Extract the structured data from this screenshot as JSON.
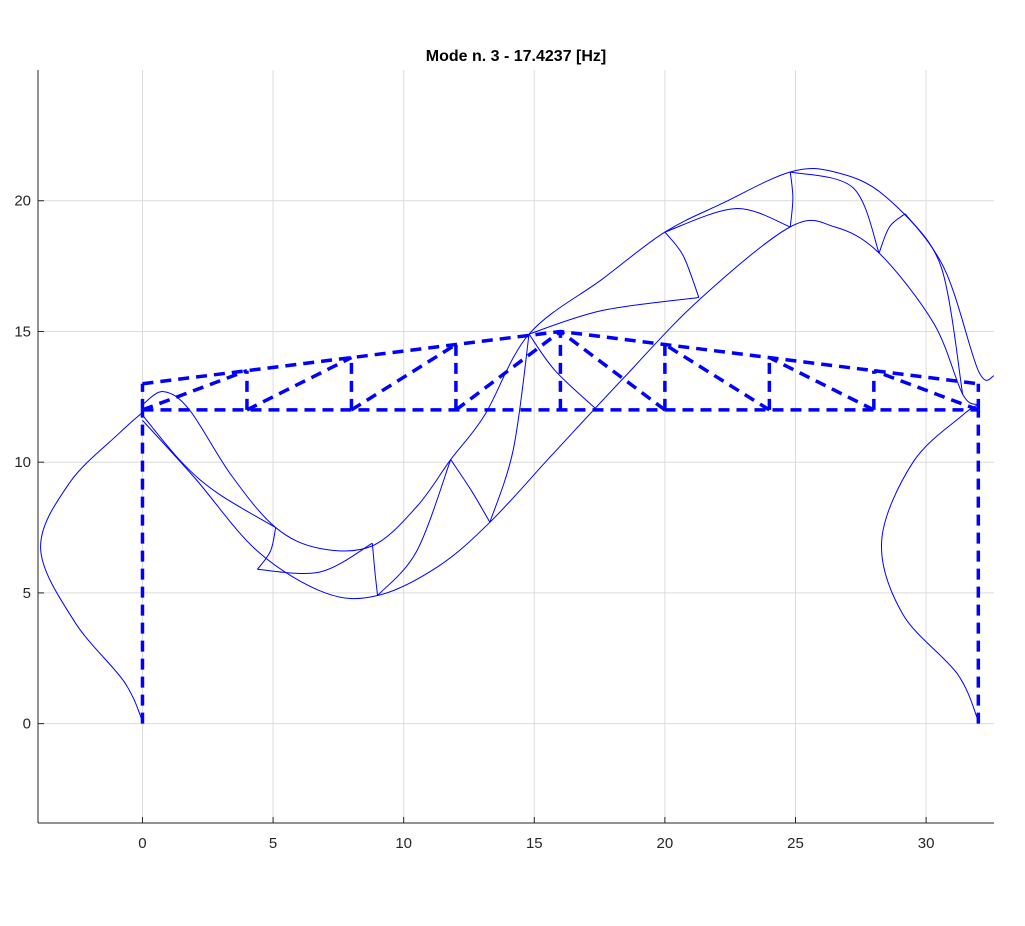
{
  "chart_data": {
    "type": "line",
    "title": "Mode n. 3 - 17.4237 [Hz]",
    "xlabel": "",
    "ylabel": "",
    "xlim": [
      -4,
      32.6
    ],
    "ylim": [
      -3.8,
      25
    ],
    "xticks": [
      0,
      5,
      10,
      15,
      20,
      25,
      30
    ],
    "yticks": [
      0,
      5,
      10,
      15,
      20
    ],
    "grid": true,
    "line_color": "#0000ff",
    "series": [
      {
        "style": "dashed-thick",
        "segments": [
          [
            [
              0,
              0
            ],
            [
              0,
              12
            ]
          ],
          [
            [
              32,
              0
            ],
            [
              32,
              12
            ]
          ],
          [
            [
              0,
              12
            ],
            [
              32,
              12
            ]
          ],
          [
            [
              0,
              13
            ],
            [
              4,
              13.5
            ],
            [
              8,
              14
            ],
            [
              12,
              14.5
            ],
            [
              16,
              15
            ],
            [
              20,
              14.5
            ],
            [
              24,
              14
            ],
            [
              28,
              13.5
            ],
            [
              32,
              13
            ]
          ],
          [
            [
              0,
              12
            ],
            [
              0,
              13
            ]
          ],
          [
            [
              4,
              12
            ],
            [
              4,
              13.5
            ]
          ],
          [
            [
              8,
              12
            ],
            [
              8,
              14
            ]
          ],
          [
            [
              12,
              12
            ],
            [
              12,
              14.5
            ]
          ],
          [
            [
              16,
              12
            ],
            [
              16,
              15
            ]
          ],
          [
            [
              20,
              12
            ],
            [
              20,
              14.5
            ]
          ],
          [
            [
              24,
              12
            ],
            [
              24,
              14
            ]
          ],
          [
            [
              28,
              12
            ],
            [
              28,
              13.5
            ]
          ],
          [
            [
              32,
              12
            ],
            [
              32,
              13
            ]
          ],
          [
            [
              0,
              12
            ],
            [
              4,
              13.5
            ]
          ],
          [
            [
              4,
              12
            ],
            [
              8,
              14
            ]
          ],
          [
            [
              8,
              12
            ],
            [
              12,
              14.5
            ]
          ],
          [
            [
              12,
              12
            ],
            [
              16,
              15
            ]
          ],
          [
            [
              20,
              12
            ],
            [
              16,
              15
            ]
          ],
          [
            [
              24,
              12
            ],
            [
              20,
              14.5
            ]
          ],
          [
            [
              28,
              12
            ],
            [
              24,
              14
            ]
          ],
          [
            [
              32,
              12
            ],
            [
              28,
              13.5
            ]
          ]
        ]
      },
      {
        "style": "thin",
        "segments": [
          [
            [
              0,
              0.1
            ],
            [
              -0.7,
              1.6
            ],
            [
              -2.6,
              3.9
            ],
            [
              -3.9,
              6.7
            ],
            [
              -2.8,
              9.2
            ],
            [
              -0.9,
              11.1
            ],
            [
              0,
              11.9
            ]
          ],
          [
            [
              32,
              0.1
            ],
            [
              31.2,
              1.9
            ],
            [
              29.1,
              4.2
            ],
            [
              28.3,
              7
            ],
            [
              29.5,
              10
            ],
            [
              31.4,
              11.8
            ],
            [
              32,
              12.2
            ]
          ],
          [
            [
              0,
              11.6
            ],
            [
              2,
              9.4
            ],
            [
              4.4,
              6.6
            ],
            [
              7,
              5
            ],
            [
              9,
              4.9
            ],
            [
              11.3,
              6
            ],
            [
              13.3,
              7.7
            ],
            [
              15.7,
              10.3
            ],
            [
              18.4,
              13.2
            ],
            [
              21.3,
              16.2
            ],
            [
              24.8,
              19
            ],
            [
              26.5,
              19
            ],
            [
              28.2,
              18
            ],
            [
              30.3,
              15.3
            ],
            [
              31.4,
              12.6
            ],
            [
              32,
              12.2
            ]
          ],
          [
            [
              0,
              12.2
            ],
            [
              0.8,
              12.7
            ],
            [
              1.8,
              12
            ],
            [
              3.4,
              9.5
            ],
            [
              5.1,
              7.5
            ],
            [
              6.8,
              6.7
            ],
            [
              8.8,
              6.8
            ],
            [
              10.5,
              8.3
            ],
            [
              11.8,
              10.1
            ],
            [
              13.1,
              11.8
            ],
            [
              14.8,
              14.9
            ],
            [
              17.6,
              17
            ],
            [
              20,
              18.8
            ],
            [
              22.2,
              19.9
            ],
            [
              24.8,
              21.1
            ],
            [
              26.5,
              21.1
            ],
            [
              28.4,
              20.2
            ],
            [
              30.6,
              17.6
            ],
            [
              32,
              13.5
            ],
            [
              32.6,
              13.3
            ]
          ],
          [
            [
              0,
              11.8
            ],
            [
              1.5,
              10
            ],
            [
              2.9,
              8.8
            ],
            [
              5.1,
              7.5
            ]
          ],
          [
            [
              4.4,
              5.9
            ],
            [
              4.9,
              6.6
            ],
            [
              5.1,
              7.5
            ]
          ],
          [
            [
              4.4,
              5.9
            ],
            [
              6.8,
              5.8
            ],
            [
              8.8,
              6.9
            ]
          ],
          [
            [
              8.8,
              6.9
            ],
            [
              8.9,
              5.8
            ],
            [
              9,
              4.9
            ]
          ],
          [
            [
              9,
              4.9
            ],
            [
              10.5,
              6.6
            ],
            [
              11.8,
              10.1
            ]
          ],
          [
            [
              11.8,
              10.1
            ],
            [
              12.6,
              8.9
            ],
            [
              13.3,
              7.7
            ]
          ],
          [
            [
              13.3,
              7.7
            ],
            [
              14.2,
              10.5
            ],
            [
              14.8,
              14.9
            ]
          ],
          [
            [
              14.8,
              14.9
            ],
            [
              15.8,
              13.5
            ],
            [
              17.4,
              12
            ]
          ],
          [
            [
              14.8,
              14.9
            ],
            [
              17.6,
              15.8
            ],
            [
              21.3,
              16.3
            ]
          ],
          [
            [
              20,
              18.8
            ],
            [
              20.7,
              17.9
            ],
            [
              21.3,
              16.3
            ]
          ],
          [
            [
              20,
              18.8
            ],
            [
              22.7,
              19.7
            ],
            [
              24.8,
              19
            ]
          ],
          [
            [
              24.8,
              21.1
            ],
            [
              24.9,
              20.1
            ],
            [
              24.8,
              19
            ]
          ],
          [
            [
              24.8,
              21.1
            ],
            [
              27.2,
              20.5
            ],
            [
              28.2,
              18
            ]
          ],
          [
            [
              28.2,
              18
            ],
            [
              28.6,
              19
            ],
            [
              29.2,
              19.5
            ]
          ],
          [
            [
              29.2,
              19.5
            ],
            [
              30.6,
              17.4
            ],
            [
              31.4,
              12.6
            ]
          ]
        ]
      }
    ]
  }
}
